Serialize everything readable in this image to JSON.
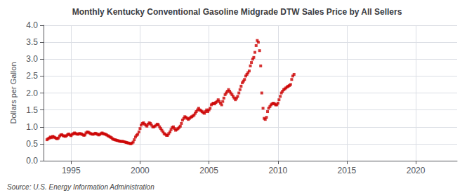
{
  "chart_data": {
    "type": "scatter",
    "title": "Monthly Kentucky Conventional Gasoline Midgrade DTW Sales Price by All Sellers",
    "ylabel": "Dollars per Gallon",
    "annotation": "Source: U.S. Energy Information Administration",
    "color": "#cc0000",
    "marker": "square",
    "grid": true,
    "xlim": [
      1993.0,
      2023.0
    ],
    "ylim": [
      0.0,
      4.0
    ],
    "xticks": [
      1995,
      2000,
      2005,
      2010,
      2015,
      2020
    ],
    "yticks": [
      {
        "value": 0.0,
        "label": "0.0"
      },
      0.5,
      {
        "value": 1.0,
        "label": "1.0"
      },
      1.5,
      {
        "value": 2.0,
        "label": "2.0"
      },
      2.5,
      {
        "value": 3.0,
        "label": "3.0"
      },
      3.5,
      {
        "value": 4.0,
        "label": "4.0"
      }
    ],
    "x": [
      1993.25,
      1993.33,
      1993.42,
      1993.5,
      1993.58,
      1993.67,
      1993.75,
      1993.83,
      1993.92,
      1994.0,
      1994.08,
      1994.17,
      1994.25,
      1994.33,
      1994.42,
      1994.5,
      1994.58,
      1994.67,
      1994.75,
      1994.83,
      1994.92,
      1995.0,
      1995.08,
      1995.17,
      1995.25,
      1995.33,
      1995.42,
      1995.5,
      1995.58,
      1995.67,
      1995.75,
      1995.83,
      1995.92,
      1996.0,
      1996.08,
      1996.17,
      1996.25,
      1996.33,
      1996.42,
      1996.5,
      1996.58,
      1996.67,
      1996.75,
      1996.83,
      1996.92,
      1997.0,
      1997.08,
      1997.17,
      1997.25,
      1997.33,
      1997.42,
      1997.5,
      1997.58,
      1997.67,
      1997.75,
      1997.83,
      1997.92,
      1998.0,
      1998.08,
      1998.17,
      1998.25,
      1998.33,
      1998.42,
      1998.5,
      1998.58,
      1998.67,
      1998.75,
      1998.83,
      1998.92,
      1999.0,
      1999.08,
      1999.17,
      1999.25,
      1999.33,
      1999.42,
      1999.5,
      1999.58,
      1999.67,
      1999.75,
      1999.83,
      1999.92,
      2000.0,
      2000.08,
      2000.17,
      2000.25,
      2000.33,
      2000.42,
      2000.5,
      2000.58,
      2000.67,
      2000.75,
      2000.83,
      2000.92,
      2001.0,
      2001.08,
      2001.17,
      2001.25,
      2001.33,
      2001.42,
      2001.5,
      2001.58,
      2001.67,
      2001.75,
      2001.83,
      2001.92,
      2002.0,
      2002.08,
      2002.17,
      2002.25,
      2002.33,
      2002.42,
      2002.5,
      2002.58,
      2002.67,
      2002.75,
      2002.83,
      2002.92,
      2003.0,
      2003.08,
      2003.17,
      2003.25,
      2003.33,
      2003.42,
      2003.5,
      2003.58,
      2003.67,
      2003.75,
      2003.83,
      2003.92,
      2004.0,
      2004.08,
      2004.17,
      2004.25,
      2004.33,
      2004.42,
      2004.5,
      2004.58,
      2004.67,
      2004.75,
      2004.83,
      2004.92,
      2005.0,
      2005.08,
      2005.17,
      2005.25,
      2005.33,
      2005.42,
      2005.5,
      2005.58,
      2005.67,
      2005.75,
      2005.83,
      2005.92,
      2006.0,
      2006.08,
      2006.17,
      2006.25,
      2006.33,
      2006.42,
      2006.5,
      2006.58,
      2006.67,
      2006.75,
      2006.83,
      2006.92,
      2007.0,
      2007.08,
      2007.17,
      2007.25,
      2007.33,
      2007.42,
      2007.5,
      2007.58,
      2007.67,
      2007.75,
      2007.83,
      2007.92,
      2008.0,
      2008.08,
      2008.17,
      2008.25,
      2008.33,
      2008.42,
      2008.5,
      2008.58,
      2008.67,
      2008.75,
      2008.83,
      2008.92,
      2009.0,
      2009.08,
      2009.17,
      2009.25,
      2009.33,
      2009.42,
      2009.5,
      2009.58,
      2009.67,
      2009.75,
      2009.83,
      2009.92,
      2010.0,
      2010.08,
      2010.17,
      2010.25,
      2010.33,
      2010.42,
      2010.5,
      2010.58,
      2010.67,
      2010.75,
      2010.83,
      2010.92,
      2011.0,
      2011.08,
      2011.17
    ],
    "values": [
      0.62,
      0.65,
      0.67,
      0.7,
      0.68,
      0.72,
      0.7,
      0.68,
      0.66,
      0.65,
      0.67,
      0.73,
      0.76,
      0.77,
      0.74,
      0.73,
      0.72,
      0.74,
      0.77,
      0.79,
      0.76,
      0.74,
      0.78,
      0.8,
      0.82,
      0.8,
      0.79,
      0.78,
      0.8,
      0.8,
      0.79,
      0.77,
      0.75,
      0.76,
      0.82,
      0.85,
      0.84,
      0.82,
      0.8,
      0.79,
      0.78,
      0.79,
      0.81,
      0.8,
      0.78,
      0.76,
      0.78,
      0.8,
      0.82,
      0.8,
      0.79,
      0.78,
      0.76,
      0.74,
      0.72,
      0.7,
      0.68,
      0.65,
      0.63,
      0.62,
      0.61,
      0.6,
      0.59,
      0.58,
      0.57,
      0.57,
      0.57,
      0.56,
      0.55,
      0.54,
      0.53,
      0.52,
      0.51,
      0.5,
      0.52,
      0.55,
      0.62,
      0.7,
      0.75,
      0.78,
      0.85,
      0.95,
      1.05,
      1.1,
      1.12,
      1.08,
      1.05,
      1.02,
      1.08,
      1.12,
      1.1,
      1.05,
      1.0,
      1.0,
      1.02,
      1.05,
      1.08,
      1.06,
      1.0,
      0.95,
      0.9,
      0.85,
      0.8,
      0.78,
      0.75,
      0.75,
      0.8,
      0.85,
      0.92,
      0.98,
      1.0,
      0.95,
      0.9,
      0.92,
      0.95,
      0.98,
      1.02,
      1.1,
      1.2,
      1.25,
      1.3,
      1.28,
      1.25,
      1.22,
      1.25,
      1.28,
      1.3,
      1.32,
      1.35,
      1.4,
      1.45,
      1.5,
      1.55,
      1.5,
      1.48,
      1.45,
      1.42,
      1.4,
      1.45,
      1.5,
      1.45,
      1.5,
      1.55,
      1.65,
      1.68,
      1.7,
      1.68,
      1.72,
      1.75,
      1.8,
      1.75,
      1.7,
      1.65,
      1.75,
      1.85,
      1.95,
      2.0,
      2.05,
      2.1,
      2.05,
      2.0,
      1.95,
      1.9,
      1.85,
      1.8,
      1.85,
      1.9,
      2.0,
      2.1,
      2.2,
      2.3,
      2.35,
      2.4,
      2.5,
      2.55,
      2.6,
      2.65,
      2.8,
      2.9,
      3.0,
      3.05,
      3.2,
      3.4,
      3.55,
      3.5,
      3.25,
      2.8,
      2.0,
      1.55,
      1.25,
      1.22,
      1.28,
      1.45,
      1.55,
      1.6,
      1.65,
      1.68,
      1.7,
      1.68,
      1.65,
      1.65,
      1.7,
      1.8,
      1.9,
      2.0,
      2.05,
      2.1,
      2.12,
      2.15,
      2.18,
      2.2,
      2.22,
      2.25,
      2.4,
      2.5,
      2.55
    ]
  }
}
